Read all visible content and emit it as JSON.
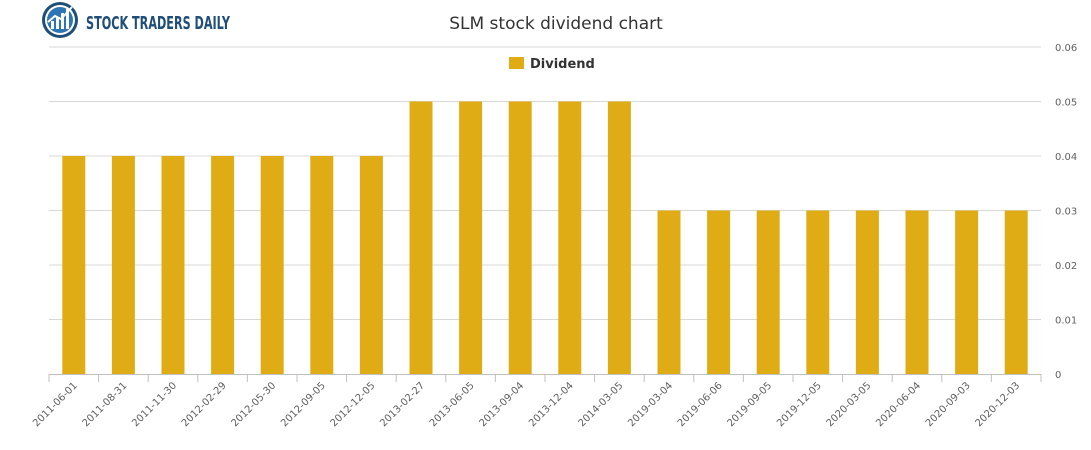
{
  "logo": {
    "text": "STOCK TRADERS DAILY",
    "icon": "chart-globe-icon",
    "color": "#1f4e79"
  },
  "chart_data": {
    "type": "bar",
    "title": "SLM stock dividend chart",
    "xlabel": "",
    "ylabel": "",
    "categories": [
      "2011-06-01",
      "2011-08-31",
      "2011-11-30",
      "2012-02-29",
      "2012-05-30",
      "2012-09-05",
      "2012-12-05",
      "2013-02-27",
      "2013-06-05",
      "2013-09-04",
      "2013-12-04",
      "2014-03-05",
      "2019-03-04",
      "2019-06-06",
      "2019-09-05",
      "2019-12-05",
      "2020-03-05",
      "2020-06-04",
      "2020-09-03",
      "2020-12-03"
    ],
    "series": [
      {
        "name": "Dividend",
        "color": "#e0ac16",
        "values": [
          0.04,
          0.04,
          0.04,
          0.04,
          0.04,
          0.04,
          0.04,
          0.05,
          0.05,
          0.05,
          0.05,
          0.05,
          0.03,
          0.03,
          0.03,
          0.03,
          0.03,
          0.03,
          0.03,
          0.03
        ]
      }
    ],
    "ylim": [
      0,
      0.06
    ],
    "yticks": [
      "0",
      "0.01",
      "0.02",
      "0.03",
      "0.04",
      "0.05",
      "0.06"
    ],
    "y_axis_side": "right",
    "grid": true,
    "legend_position": "top-center"
  }
}
